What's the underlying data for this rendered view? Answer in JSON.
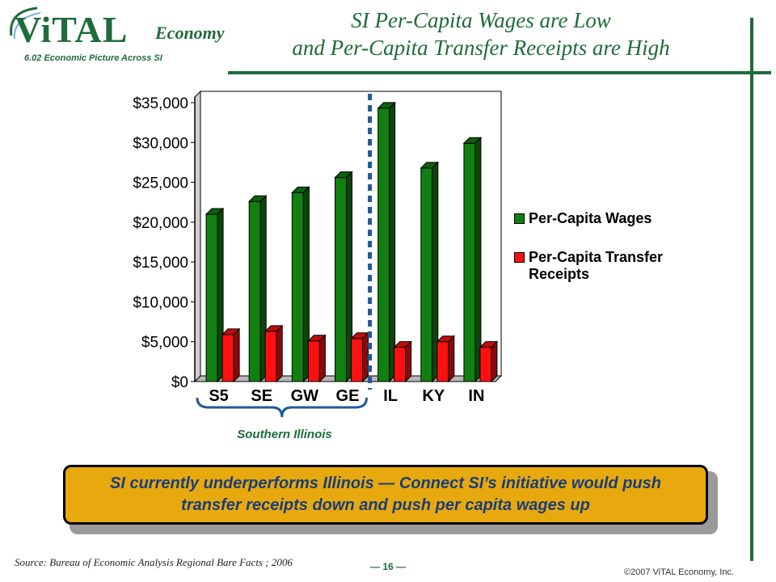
{
  "logo": {
    "brand": "ViTAL",
    "word": "Economy"
  },
  "section_code": "6.02 Economic Picture Across SI",
  "title_line1": "SI Per-Capita Wages are Low",
  "title_line2": "and Per-Capita Transfer Receipts are High",
  "region_label": "Southern Illinois",
  "callout_text": "SI currently underperforms Illinois — Connect SI’s initiative would push transfer receipts down and push per capita wages up",
  "source": "Source: Bureau of Economic Analysis Regional Bare Facts ; 2006",
  "page_number": "— 16 —",
  "copyright": "©2007 ViTAL Economy, Inc.",
  "colors": {
    "wages": "#108010",
    "transfers": "#ff1010",
    "brand": "#1f6b3a",
    "callout": "#e8a90e",
    "divider": "#1f5b9a"
  },
  "chart_data": {
    "type": "bar",
    "categories": [
      "S5",
      "SE",
      "GW",
      "GE",
      "IL",
      "KY",
      "IN"
    ],
    "series": [
      {
        "name": "Per-Capita Wages",
        "values": [
          21000,
          22600,
          23700,
          25600,
          34300,
          26800,
          29900
        ]
      },
      {
        "name": "Per-Capita Transfer Receipts",
        "values": [
          5900,
          6300,
          5100,
          5400,
          4300,
          5000,
          4300
        ]
      }
    ],
    "ylim": [
      0,
      35000
    ],
    "yticks": [
      "$0",
      "$5,000",
      "$10,000",
      "$15,000",
      "$20,000",
      "$25,000",
      "$30,000",
      "$35,000"
    ],
    "ytick_values": [
      0,
      5000,
      10000,
      15000,
      20000,
      25000,
      30000,
      35000
    ],
    "grid": false,
    "legend": "right",
    "divider_after_category": "GE"
  }
}
